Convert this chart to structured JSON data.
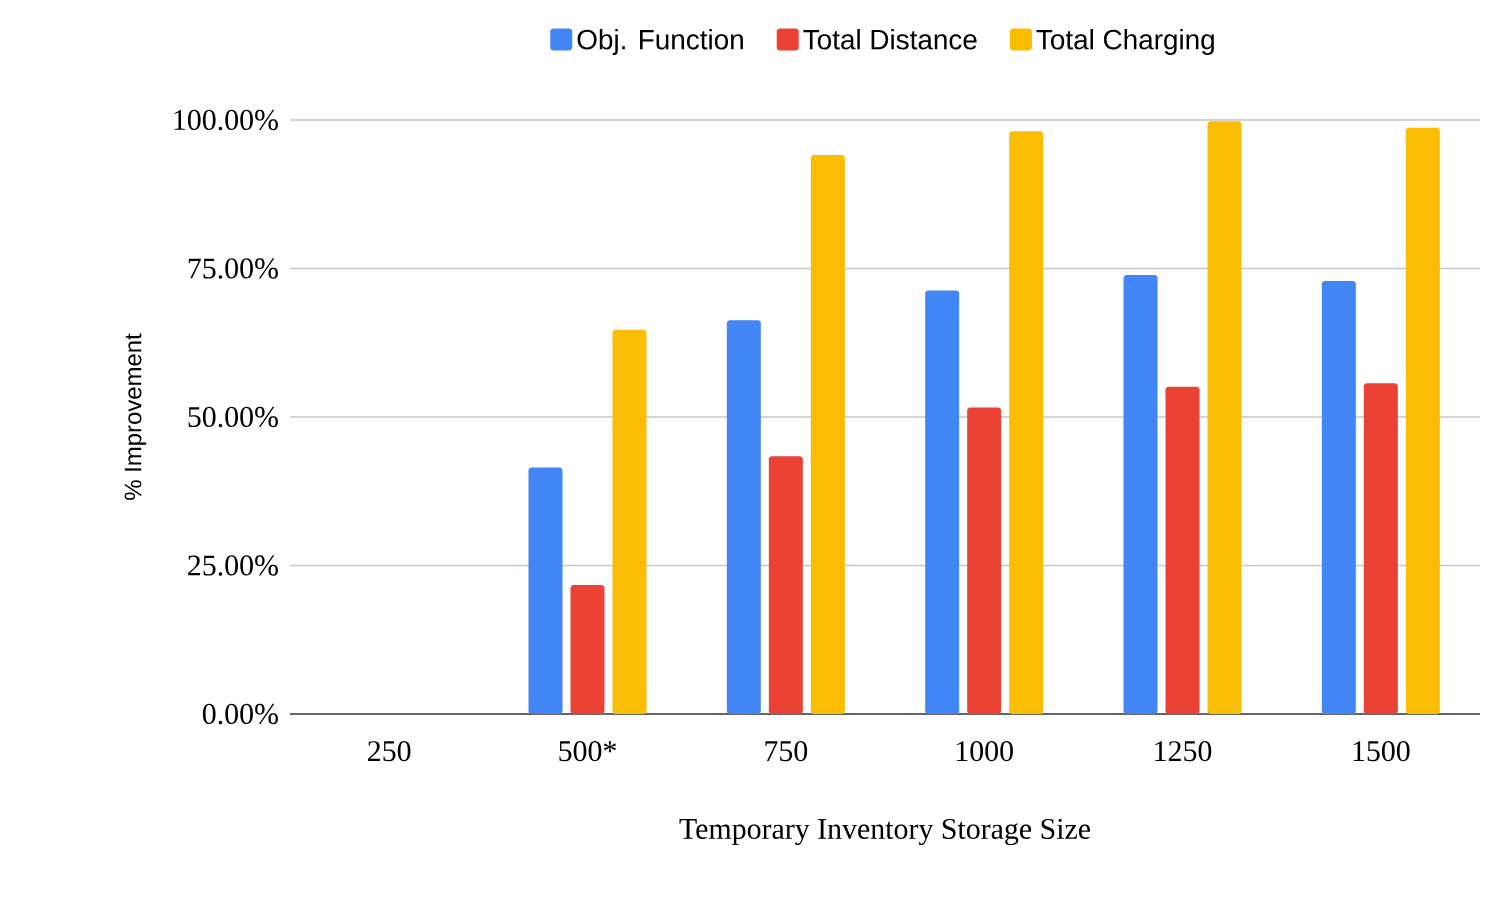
{
  "chart_data": {
    "type": "bar",
    "xlabel": "Temporary Inventory Storage Size",
    "ylabel": "% Improvement",
    "categories": [
      "250",
      "500*",
      "750",
      "1000",
      "1250",
      "1500"
    ],
    "series": [
      {
        "name": "Obj. Function",
        "color": "#4285f4",
        "values": [
          null,
          41.5,
          66.3,
          71.3,
          73.9,
          72.9
        ]
      },
      {
        "name": "Total Distance",
        "color": "#ea4335",
        "values": [
          null,
          21.7,
          43.4,
          51.6,
          55.1,
          55.7
        ]
      },
      {
        "name": "Total Charging",
        "color": "#fbbc04",
        "values": [
          null,
          64.7,
          94.1,
          98.1,
          99.8,
          98.7
        ]
      }
    ],
    "ylim": [
      0,
      100
    ],
    "yticks": [
      {
        "value": 0,
        "label": "0.00%"
      },
      {
        "value": 25,
        "label": "25.00%"
      },
      {
        "value": 50,
        "label": "50.00%"
      },
      {
        "value": 75,
        "label": "75.00%"
      },
      {
        "value": 100,
        "label": "100.00%"
      }
    ],
    "grid": "y",
    "legend": "top"
  }
}
